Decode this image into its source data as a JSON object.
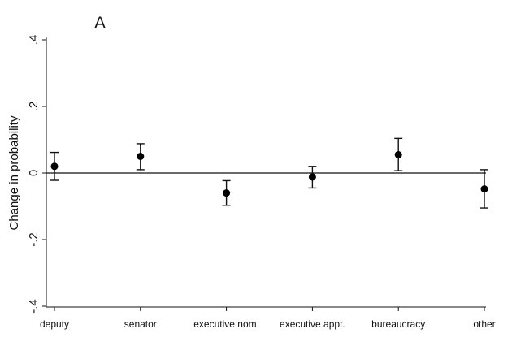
{
  "chart_data": {
    "type": "scatter",
    "title": "A",
    "xlabel": "",
    "ylabel": "Change in probability",
    "ylim": [
      -0.4,
      0.4
    ],
    "yticks": [
      ".4",
      ".2",
      "0",
      "-.2",
      "-.4"
    ],
    "categories": [
      "deputy",
      "senator",
      "executive nom.",
      "executive appt.",
      "bureaucracy",
      "other"
    ],
    "estimates": [
      0.02,
      0.05,
      -0.06,
      -0.012,
      0.055,
      -0.048
    ],
    "ci_lower": [
      -0.022,
      0.01,
      -0.097,
      -0.045,
      0.007,
      -0.105
    ],
    "ci_upper": [
      0.062,
      0.088,
      -0.023,
      0.02,
      0.104,
      0.01
    ],
    "reference_line": 0,
    "grid": false,
    "legend": "none"
  }
}
